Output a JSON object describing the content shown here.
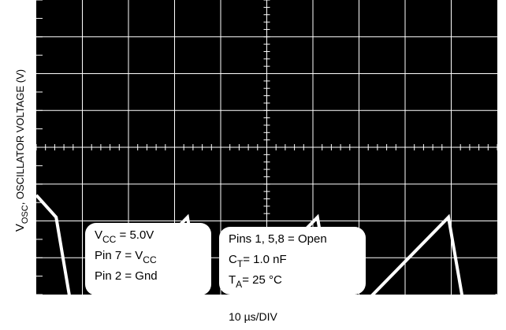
{
  "chart_data": {
    "type": "line",
    "background": "#000000",
    "trace_color": "#ffffff",
    "grid_color": "#ffffff",
    "grid": true,
    "divisions": {
      "x": 10,
      "y": 8
    },
    "xlabel": "10 µs/DIV",
    "ylabel": {
      "main": "V",
      "sub": "OSC",
      "suffix": ", OSCILLATOR VOLTAGE (V)"
    },
    "x_unit": "µs",
    "x_per_div": 10,
    "series": [
      {
        "x": [
          0,
          4.3,
          8.5,
          32.8,
          36.9,
          61.0,
          65.2,
          89.4,
          93.7,
          100
        ],
        "y_div": [
          -1.3,
          -1.9,
          -5.0,
          -1.9,
          -5.0,
          -1.9,
          -5.0,
          -1.9,
          -5.0,
          -4.0
        ]
      }
    ],
    "conditions_left": [
      {
        "base": "V",
        "sub": "CC",
        "rest": " = 5.0V"
      },
      {
        "base": "Pin 7 = V",
        "sub": "CC",
        "rest": ""
      },
      {
        "base": "Pin 2 = Gnd",
        "sub": "",
        "rest": ""
      }
    ],
    "conditions_right": [
      {
        "base": "Pins 1, 5,8 = ",
        "sub": "",
        "rest": " Open"
      },
      {
        "base": "C",
        "sub": "T",
        "rest": "= 1.0 nF"
      },
      {
        "base": "T",
        "sub": "A",
        "rest": "= 25 °C"
      }
    ]
  }
}
